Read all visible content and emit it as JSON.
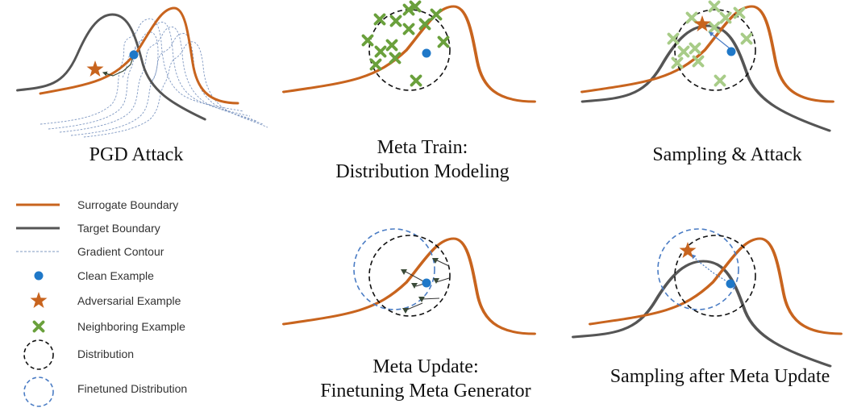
{
  "colors": {
    "surrogate": "#C8641E",
    "target": "#555555",
    "contour": "#7F98C2",
    "clean": "#1F78C8",
    "adversarial": "#C8641E",
    "neighbor": "#6AA03C",
    "neighbor_light": "#A8CC88",
    "distribution": "#111111",
    "finetuned": "#4A7CC4",
    "gradient_marker": "#3A4A38"
  },
  "panels": {
    "pgd": {
      "caption": "PGD Attack"
    },
    "meta_train": {
      "caption_line1": "Meta Train:",
      "caption_line2": "Distribution Modeling"
    },
    "sampling_attack": {
      "caption": "Sampling & Attack"
    },
    "meta_update": {
      "caption_line1": "Meta Update:",
      "caption_line2": "Finetuning Meta Generator"
    },
    "sampling_after": {
      "caption": "Sampling after Meta Update"
    }
  },
  "legend": {
    "items": [
      {
        "label": "Surrogate Boundary",
        "icon": "orange-line"
      },
      {
        "label": "Target Boundary",
        "icon": "gray-line"
      },
      {
        "label": "Gradient Contour",
        "icon": "dashed-blue-line"
      },
      {
        "label": "Clean Example",
        "icon": "blue-dot"
      },
      {
        "label": "Adversarial Example",
        "icon": "orange-star"
      },
      {
        "label": "Neighboring Example",
        "icon": "green-cross"
      },
      {
        "label": "Distribution",
        "icon": "black-dashed-circle"
      },
      {
        "label": "Finetuned Distribution",
        "icon": "blue-dashed-circle"
      }
    ]
  }
}
